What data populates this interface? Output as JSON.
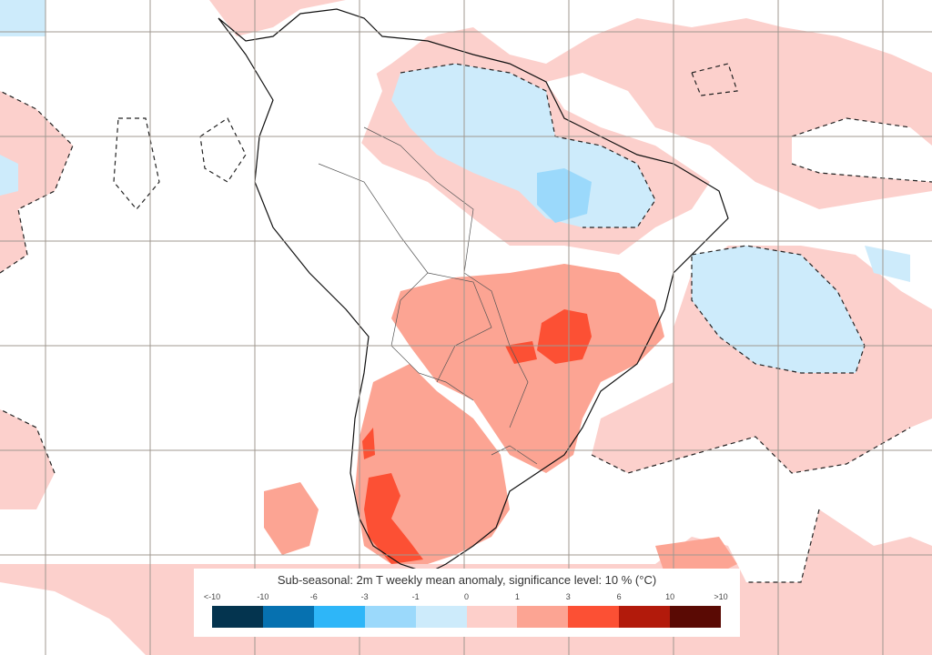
{
  "legend": {
    "title": "Sub-seasonal: 2m T weekly mean anomaly, significance level: 10 % (°C)",
    "ticks": [
      "<-10",
      "-10",
      "-6",
      "-3",
      "-1",
      "0",
      "1",
      "3",
      "6",
      "10",
      ">10"
    ],
    "colors": [
      "#04344f",
      "#0671b0",
      "#2eb6f8",
      "#9bd9fb",
      "#cdebfb",
      "#fdcfca",
      "#fca493",
      "#fc5034",
      "#b21a0b",
      "#5a0a04"
    ]
  },
  "colors": {
    "background": "#fcd0cc",
    "neutral": "#ffffff",
    "grid": "#a09890",
    "coast": "#111111"
  }
}
